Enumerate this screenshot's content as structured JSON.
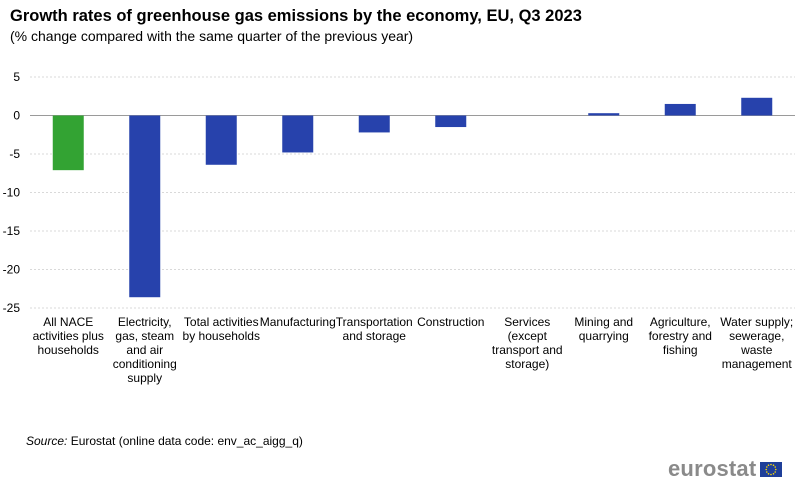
{
  "title": "Growth rates of greenhouse gas emissions by the economy, EU, Q3 2023",
  "subtitle": "(% change compared with the same quarter of the previous year)",
  "source": {
    "label": "Source:",
    "text": "Eurostat (online data code: env_ac_aigg_q)"
  },
  "logo": {
    "text": "eurostat"
  },
  "colors": {
    "highlight": "#33a333",
    "bar": "#2742ac",
    "grid": "#d9d9d9"
  },
  "chart_data": {
    "type": "bar",
    "categories": [
      [
        "All NACE",
        "activities plus",
        "households"
      ],
      [
        "Electricity,",
        "gas, steam",
        "and air",
        "conditioning",
        "supply"
      ],
      [
        "Total activities",
        "by households"
      ],
      [
        "Manufacturing"
      ],
      [
        "Transportation",
        "and storage"
      ],
      [
        "Construction"
      ],
      [
        "Services",
        "(except",
        "transport and",
        "storage)"
      ],
      [
        "Mining and",
        "quarrying"
      ],
      [
        "Agriculture,",
        "forestry and",
        "fishing"
      ],
      [
        "Water supply;",
        "sewerage,",
        "waste",
        "management"
      ]
    ],
    "values": [
      -7.1,
      -23.6,
      -6.4,
      -4.8,
      -2.2,
      -1.5,
      0.0,
      0.3,
      1.5,
      2.3
    ],
    "highlight_index": 0,
    "ylim": [
      -25,
      5
    ],
    "yticks": [
      5,
      0,
      -5,
      -10,
      -15,
      -20,
      -25
    ],
    "grid": true,
    "xlabel": "",
    "ylabel": ""
  }
}
